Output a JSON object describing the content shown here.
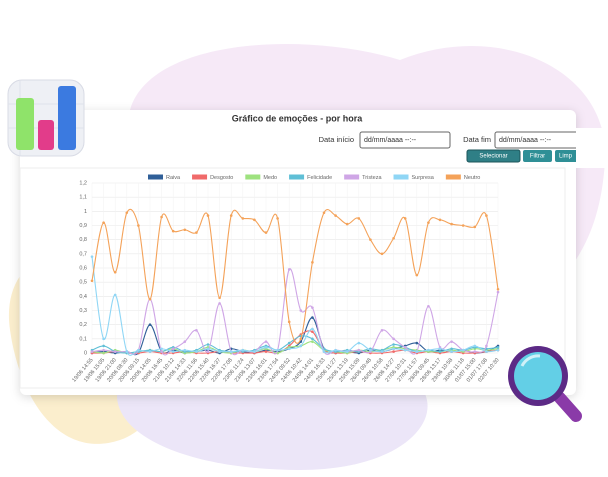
{
  "form": {
    "title": "Gráfico de emoções - por hora",
    "start_label": "Data início",
    "end_label": "Data fim",
    "start_placeholder": "dd/mm/aaaa --:--",
    "end_placeholder": "dd/mm/aaaa --:--",
    "buttons": [
      "Selecionar",
      "Filtrar",
      "Limp"
    ]
  },
  "chart_data": {
    "type": "line",
    "ylim": [
      0,
      1.2
    ],
    "yticks": [
      0,
      {
        "value": 0.1,
        "label": "0,1"
      },
      {
        "value": 0.2,
        "label": "0,2"
      },
      {
        "value": 0.3,
        "label": "0,3"
      },
      {
        "value": 0.4,
        "label": "0,4"
      },
      {
        "value": 0.5,
        "label": "0,5"
      },
      {
        "value": 0.6,
        "label": "0,6"
      },
      {
        "value": 0.7,
        "label": "0,7"
      },
      {
        "value": 0.8,
        "label": "0,8"
      },
      {
        "value": 0.9,
        "label": "0,9"
      },
      1,
      {
        "value": 1.1,
        "label": "1,1"
      },
      {
        "value": 1.2,
        "label": "1,2"
      }
    ],
    "grid": true,
    "categories": [
      "19/06 14:55",
      "19/06 15:05",
      "19/06 21:00",
      "20/06 08:30",
      "20/06 09:15",
      "20/06 14:05",
      "20/06 16:45",
      "21/06 10:12",
      "21/06 14:33",
      "22/06 11:56",
      "22/06 15:40",
      "22/06 16:37",
      "22/06 17:08",
      "23/06 11:24",
      "23/06 13:07",
      "23/06 16:01",
      "23/06 17:54",
      "24/06 09:52",
      "24/06 10:42",
      "24/06 14:01",
      "24/06 16:33",
      "25/06 11:27",
      "25/06 13:19",
      "25/06 15:09",
      "26/06 09:48",
      "26/06 10:58",
      "26/06 14:27",
      "27/06 10:31",
      "27/06 11:57",
      "28/06 09:45",
      "28/06 13:17",
      "29/06 10:58",
      "30/06 11:18",
      "01/07 15:00",
      "01/07 17:08",
      "02/07 10:30"
    ],
    "series": [
      {
        "name": "Raiva",
        "color": "#2f5f98",
        "values": [
          0,
          0.01,
          0,
          0.01,
          0,
          0.2,
          0.01,
          0.02,
          0,
          0.01,
          0.02,
          0,
          0.03,
          0.01,
          0,
          0.02,
          0.01,
          0.03,
          0.08,
          0.25,
          0.03,
          0,
          0.01,
          0,
          0.02,
          0.01,
          0.03,
          0.05,
          0.07,
          0.01,
          0.02,
          0.01,
          0.02,
          0,
          0.01,
          0.05
        ]
      },
      {
        "name": "Desgosto",
        "color": "#f06a6a",
        "values": [
          0,
          0,
          0.01,
          0,
          0,
          0.01,
          0,
          0,
          0.01,
          0,
          0,
          0.01,
          0,
          0,
          0,
          0.01,
          0,
          0.05,
          0.13,
          0.15,
          0.02,
          0,
          0,
          0.01,
          0,
          0,
          0.01,
          0.02,
          0,
          0.01,
          0,
          0.01,
          0,
          0,
          0.01,
          0.02
        ]
      },
      {
        "name": "Medo",
        "color": "#9ee27f",
        "values": [
          0.01,
          0,
          0.02,
          0,
          0.01,
          0.02,
          0.01,
          0.03,
          0,
          0.01,
          0.04,
          0.01,
          0,
          0.02,
          0.01,
          0.03,
          0,
          0.04,
          0.05,
          0.08,
          0.02,
          0.01,
          0,
          0.02,
          0.01,
          0.02,
          0.04,
          0.03,
          0.02,
          0.01,
          0.01,
          0.02,
          0.01,
          0.03,
          0.02,
          0.03
        ]
      },
      {
        "name": "Felicidade",
        "color": "#5fbfd6",
        "values": [
          0.02,
          0.05,
          0.01,
          0,
          0.01,
          0.02,
          0.01,
          0.04,
          0.01,
          0.02,
          0.06,
          0.02,
          0.01,
          0.01,
          0.02,
          0.05,
          0.02,
          0.07,
          0.12,
          0.1,
          0.03,
          0.01,
          0.02,
          0.01,
          0.03,
          0.02,
          0.06,
          0.04,
          0.01,
          0.02,
          0.01,
          0.03,
          0.02,
          0.04,
          0.03,
          0.04
        ]
      },
      {
        "name": "Tristeza",
        "color": "#cfa6e6",
        "values": [
          0.01,
          0.02,
          0.01,
          0.01,
          0.02,
          0.38,
          0.01,
          0.03,
          0.08,
          0.16,
          0.01,
          0.35,
          0.01,
          0.02,
          0.01,
          0.08,
          0.02,
          0.59,
          0.3,
          0.32,
          0.01,
          0.02,
          0.01,
          0.02,
          0.01,
          0.16,
          0.1,
          0.04,
          0.01,
          0.33,
          0.04,
          0.08,
          0.02,
          0.01,
          0.05,
          0.43
        ]
      },
      {
        "name": "Surpresa",
        "color": "#8fd6f5",
        "values": [
          0.68,
          0.1,
          0.41,
          0.01,
          0.02,
          0.01,
          0.03,
          0.01,
          0.02,
          0.01,
          0.03,
          0.01,
          0.01,
          0.02,
          0.01,
          0.04,
          0.02,
          0.03,
          0.05,
          0.17,
          0.01,
          0.02,
          0.01,
          0.07,
          0.02,
          0.01,
          0.03,
          0.02,
          0.01,
          0.02,
          0.03,
          0.01,
          0.02,
          0.05,
          0.01,
          0.02
        ]
      },
      {
        "name": "Neutro",
        "color": "#f4a259",
        "values": [
          0.51,
          0.92,
          0.57,
          0.99,
          0.9,
          0.38,
          0.96,
          0.86,
          0.87,
          0.85,
          0.97,
          0.39,
          0.97,
          0.95,
          0.94,
          0.85,
          0.95,
          0.22,
          0.1,
          0.64,
          0.99,
          0.97,
          0.91,
          0.95,
          0.8,
          0.7,
          0.81,
          0.95,
          0.55,
          0.92,
          0.94,
          0.91,
          0.9,
          0.89,
          0.97,
          0.45
        ]
      }
    ]
  }
}
